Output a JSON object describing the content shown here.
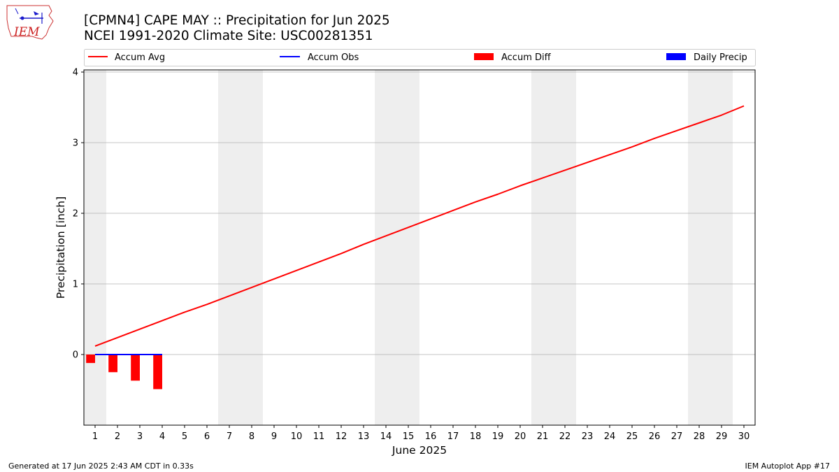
{
  "header": {
    "title_line1": "[CPMN4] CAPE MAY :: Precipitation for Jun 2025",
    "title_line2": "NCEI 1991-2020 Climate Site: USC00281351",
    "logo_text": "IEM"
  },
  "footer": {
    "left": "Generated at 17 Jun 2025 2:43 AM CDT in 0.33s",
    "right": "IEM Autoplot App #17"
  },
  "chart_data": {
    "type": "line",
    "xlabel": "June 2025",
    "ylabel": "Precipitation [inch]",
    "x": [
      1,
      2,
      3,
      4,
      5,
      6,
      7,
      8,
      9,
      10,
      11,
      12,
      13,
      14,
      15,
      16,
      17,
      18,
      19,
      20,
      21,
      22,
      23,
      24,
      25,
      26,
      27,
      28,
      29,
      30
    ],
    "xlim": [
      0.5,
      30.5
    ],
    "ylim": [
      -1.0,
      4.03
    ],
    "yticks": [
      0,
      1,
      2,
      3,
      4
    ],
    "grid": "horizontal",
    "legend_position": "top",
    "weekend_shading": [
      1,
      7,
      8,
      14,
      15,
      21,
      22,
      28,
      29
    ],
    "colors": {
      "avg": "#ff0000",
      "obs": "#0000ff",
      "diff": "#ff0000",
      "daily": "#0000ff",
      "shade": "#eeeeee",
      "grid": "#b0b0b0"
    },
    "series": [
      {
        "name": "Accum Avg",
        "kind": "line",
        "values": [
          0.12,
          0.24,
          0.36,
          0.48,
          0.6,
          0.71,
          0.83,
          0.95,
          1.07,
          1.19,
          1.31,
          1.43,
          1.56,
          1.68,
          1.8,
          1.92,
          2.04,
          2.16,
          2.27,
          2.39,
          2.5,
          2.61,
          2.72,
          2.83,
          2.94,
          3.06,
          3.17,
          3.28,
          3.39,
          3.52
        ]
      },
      {
        "name": "Accum Obs",
        "kind": "line",
        "x": [
          1,
          2,
          3,
          4
        ],
        "values": [
          0,
          0,
          0,
          0
        ]
      },
      {
        "name": "Accum Diff",
        "kind": "bar",
        "x": [
          1,
          2,
          3,
          4
        ],
        "values": [
          -0.12,
          -0.25,
          -0.37,
          -0.49
        ]
      },
      {
        "name": "Daily Precip",
        "kind": "bar",
        "x": [
          1,
          2,
          3,
          4
        ],
        "values": [
          0,
          0,
          0,
          0
        ]
      }
    ]
  }
}
